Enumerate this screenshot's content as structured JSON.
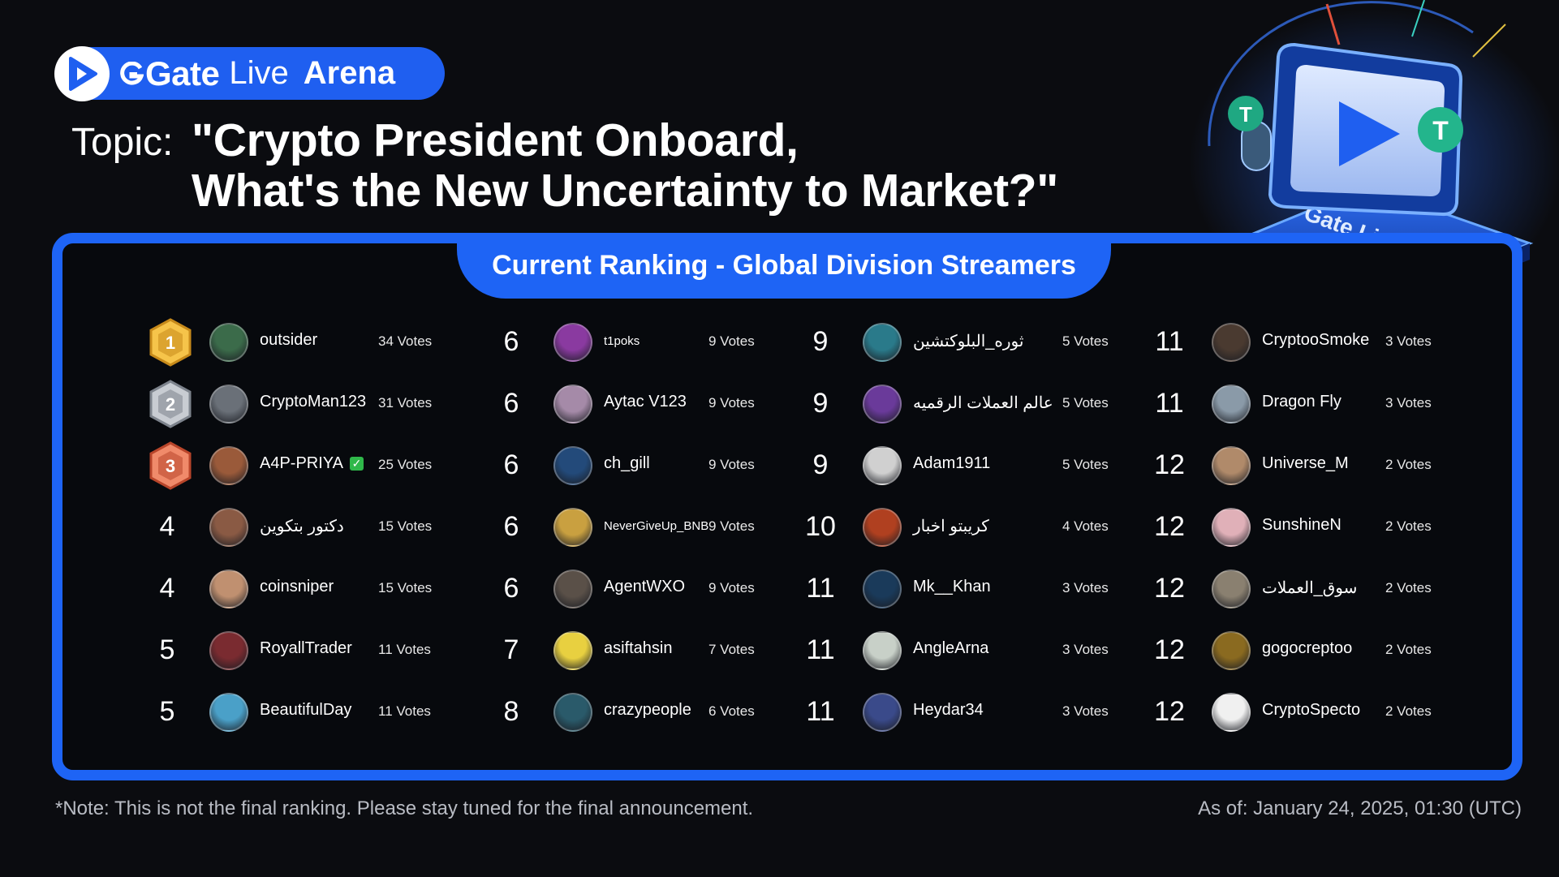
{
  "header": {
    "brand": "Gate",
    "live": "Live",
    "arena": "Arena"
  },
  "topic": {
    "label": "Topic:",
    "line1": "\"Crypto President Onboard,",
    "line2": "What's the New Uncertainty to Market?\""
  },
  "board": {
    "title": "Current Ranking - Global Division Streamers"
  },
  "rankings": [
    [
      {
        "rank": "1",
        "medal": "gold",
        "name": "outsider",
        "votes": "34 Votes",
        "avatar": "#3b6b4a"
      },
      {
        "rank": "2",
        "medal": "silver",
        "name": "CryptoMan123",
        "votes": "31 Votes",
        "avatar": "#6a7078"
      },
      {
        "rank": "3",
        "medal": "bronze",
        "name": "A4P-PRIYA",
        "verified": "✓",
        "votes": "25 Votes",
        "avatar": "#9a5a3a"
      },
      {
        "rank": "4",
        "name": "دكتور بتكوين",
        "votes": "15 Votes",
        "avatar": "#8a5a44"
      },
      {
        "rank": "4",
        "name": "coinsniper",
        "votes": "15 Votes",
        "avatar": "#c09070"
      },
      {
        "rank": "5",
        "name": "RoyallTrader",
        "votes": "11 Votes",
        "avatar": "#7a2b30"
      },
      {
        "rank": "5",
        "name": "BeautifulDay",
        "votes": "11 Votes",
        "avatar": "#4aa0c8"
      }
    ],
    [
      {
        "rank": "6",
        "name": "t1poks",
        "votes": "9 Votes",
        "avatar": "#8a3aa0",
        "small": true
      },
      {
        "rank": "6",
        "name": "Aytac V123",
        "votes": "9 Votes",
        "avatar": "#a58aa8"
      },
      {
        "rank": "6",
        "name": "ch_gill",
        "votes": "9 Votes",
        "avatar": "#234a7a"
      },
      {
        "rank": "6",
        "name": "NeverGiveUp_BNB",
        "votes": "9 Votes",
        "avatar": "#c9a040",
        "small": true
      },
      {
        "rank": "6",
        "name": "AgentWXO",
        "votes": "9 Votes",
        "avatar": "#5a5048"
      },
      {
        "rank": "7",
        "name": "asiftahsin",
        "votes": "7 Votes",
        "avatar": "#e8d040"
      },
      {
        "rank": "8",
        "name": "crazypeople",
        "votes": "6 Votes",
        "avatar": "#2a5a6a"
      }
    ],
    [
      {
        "rank": "9",
        "name": "ثوره_البلوكتشين",
        "votes": "5 Votes",
        "avatar": "#2a7a8a"
      },
      {
        "rank": "9",
        "name": "عالم العملات الرقميه",
        "votes": "5 Votes",
        "avatar": "#6a3a9a"
      },
      {
        "rank": "9",
        "name": "Adam1911",
        "votes": "5 Votes",
        "avatar": "#d0d0d0"
      },
      {
        "rank": "10",
        "name": "كريبتو اخبار",
        "votes": "4 Votes",
        "avatar": "#b04020"
      },
      {
        "rank": "11",
        "name": "Mk__Khan",
        "votes": "3 Votes",
        "avatar": "#1a3a5a"
      },
      {
        "rank": "11",
        "name": "AngleArna",
        "votes": "3 Votes",
        "avatar": "#c8d0c8"
      },
      {
        "rank": "11",
        "name": "Heydar34",
        "votes": "3 Votes",
        "avatar": "#3a4a8a"
      }
    ],
    [
      {
        "rank": "11",
        "name": "CryptooSmoke",
        "votes": "3 Votes",
        "avatar": "#4a3a30"
      },
      {
        "rank": "11",
        "name": "Dragon Fly",
        "votes": "3 Votes",
        "avatar": "#8a9aa8"
      },
      {
        "rank": "12",
        "name": "Universe_M",
        "votes": "2 Votes",
        "avatar": "#b08a6a"
      },
      {
        "rank": "12",
        "name": "SunshineN",
        "votes": "2 Votes",
        "avatar": "#e0b0b8"
      },
      {
        "rank": "12",
        "name": "سوق_العملات",
        "votes": "2 Votes",
        "avatar": "#8a8070"
      },
      {
        "rank": "12",
        "name": "gogocreptoo",
        "votes": "2 Votes",
        "avatar": "#8a6a20"
      },
      {
        "rank": "12",
        "name": "CryptoSpecto",
        "votes": "2 Votes",
        "avatar": "#f0f0f0"
      }
    ]
  ],
  "footer": {
    "note": "*Note: This is not the final ranking. Please stay tuned for the final announcement.",
    "as_of": "As of: January 24, 2025, 01:30 (UTC)"
  },
  "colors": {
    "accent": "#1e64f5",
    "background": "#0b0c10",
    "gold": "#e0a030",
    "silver": "#9aa0a8",
    "bronze": "#d86a4a"
  },
  "icons": [
    "play-icon",
    "gate-logo-icon",
    "medal-icon",
    "verified-check-icon",
    "monitor-play-icon",
    "microphone-icon",
    "tether-coin-icon"
  ]
}
